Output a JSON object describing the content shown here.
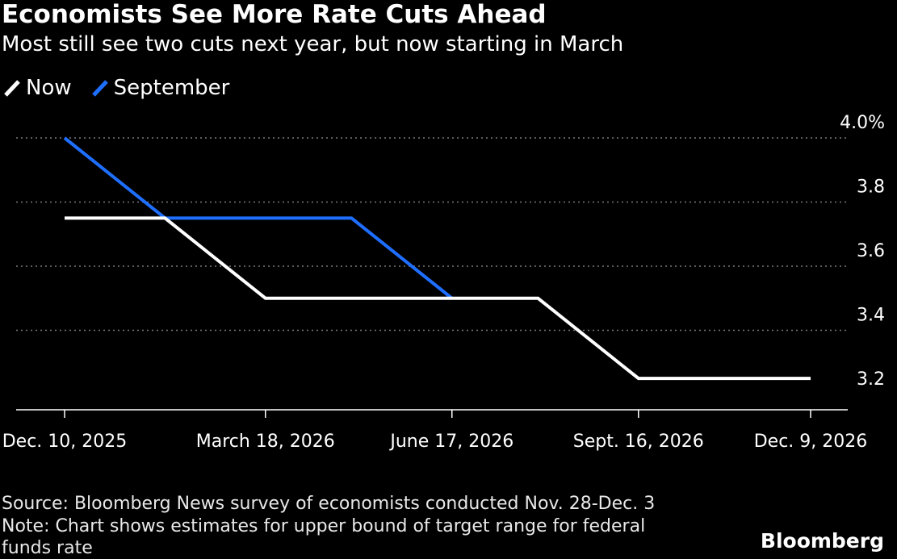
{
  "title": "Economists See More Rate Cuts Ahead",
  "subtitle": "Most still see two cuts next year, but now starting in March",
  "footer": {
    "source": "Source: Bloomberg News survey of economists conducted Nov. 28-Dec. 3",
    "note_line1": "Note: Chart shows estimates for upper bound of target range for federal",
    "note_line2": "funds rate"
  },
  "brand": "Bloomberg",
  "colors": {
    "now": "#ffffff",
    "september": "#1f6fff",
    "grid": "#7a7a7a",
    "background": "#000000"
  },
  "chart_data": {
    "type": "line",
    "x": [
      "2025-12-10",
      "2026-01-28",
      "2026-03-18",
      "2026-04-29",
      "2026-06-17",
      "2026-07-29",
      "2026-09-16",
      "2026-10-28",
      "2026-12-09"
    ],
    "x_tick_labels": [
      {
        "date": "2025-12-10",
        "label": "Dec. 10, 2025"
      },
      {
        "date": "2026-03-18",
        "label": "March 18, 2026"
      },
      {
        "date": "2026-06-17",
        "label": "June 17, 2026"
      },
      {
        "date": "2026-09-16",
        "label": "Sept. 16, 2026"
      },
      {
        "date": "2026-12-09",
        "label": "Dec. 9, 2026"
      }
    ],
    "y_tick_labels": [
      {
        "value": 4.0,
        "label": "4.0%"
      },
      {
        "value": 3.8,
        "label": "3.8"
      },
      {
        "value": 3.6,
        "label": "3.6"
      },
      {
        "value": 3.4,
        "label": "3.4"
      },
      {
        "value": 3.2,
        "label": "3.2"
      }
    ],
    "ylim": [
      3.2,
      4.0
    ],
    "grid": true,
    "legend_position": "top-left",
    "series": [
      {
        "name": "Now",
        "values": [
          3.75,
          3.75,
          3.5,
          3.5,
          3.5,
          3.5,
          3.25,
          3.25,
          3.25
        ]
      },
      {
        "name": "September",
        "values": [
          4.0,
          3.75,
          3.75,
          3.75,
          3.5,
          null,
          null,
          null,
          null
        ]
      }
    ]
  }
}
